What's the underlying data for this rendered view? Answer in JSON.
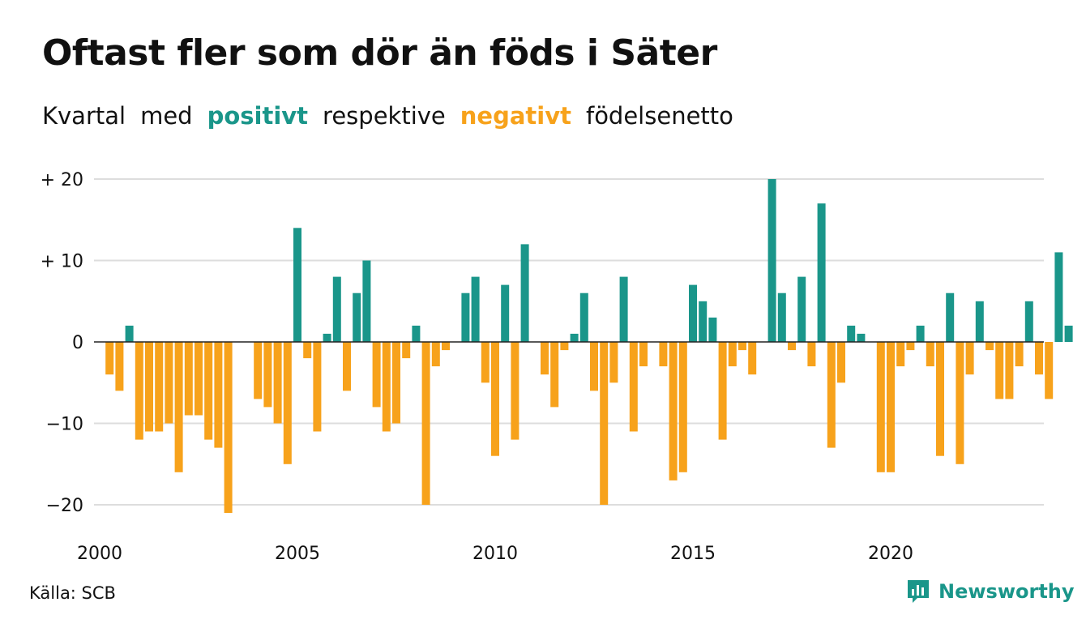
{
  "title": "Oftast fler som dör än föds i Säter",
  "subtitle": {
    "w1": "Kvartal",
    "w2": "med",
    "positive": "positivt",
    "w3": "respektive",
    "negative": "negativt",
    "w4": "födelsenetto"
  },
  "source": "Källa: SCB",
  "brand": "Newsworthy",
  "colors": {
    "positive": "#1a968a",
    "negative": "#f7a21b",
    "text": "#111111",
    "grid": "#dddddd",
    "axis": "#222222"
  },
  "chart_data": {
    "type": "bar",
    "frequency": "quarterly",
    "start_year": 2000,
    "ylim": [
      -22,
      21
    ],
    "yticks": [
      20,
      10,
      0,
      -10,
      -20
    ],
    "ytick_labels": [
      "+ 20",
      "+ 10",
      "0",
      "−10",
      "−20"
    ],
    "xtick_labels": [
      "2000",
      "2005",
      "2010",
      "2015",
      "2020"
    ],
    "grid": true,
    "legend": "none",
    "categories": [
      "2000-Q1",
      "2000-Q2",
      "2000-Q3",
      "2000-Q4",
      "2001-Q1",
      "2001-Q2",
      "2001-Q3",
      "2001-Q4",
      "2002-Q1",
      "2002-Q2",
      "2002-Q3",
      "2002-Q4",
      "2003-Q1",
      "2003-Q2",
      "2003-Q3",
      "2003-Q4",
      "2004-Q1",
      "2004-Q2",
      "2004-Q3",
      "2004-Q4",
      "2005-Q1",
      "2005-Q2",
      "2005-Q3",
      "2005-Q4",
      "2006-Q1",
      "2006-Q2",
      "2006-Q3",
      "2006-Q4",
      "2007-Q1",
      "2007-Q2",
      "2007-Q3",
      "2007-Q4",
      "2008-Q1",
      "2008-Q2",
      "2008-Q3",
      "2008-Q4",
      "2009-Q1",
      "2009-Q2",
      "2009-Q3",
      "2009-Q4",
      "2010-Q1",
      "2010-Q2",
      "2010-Q3",
      "2010-Q4",
      "2011-Q1",
      "2011-Q2",
      "2011-Q3",
      "2011-Q4",
      "2012-Q1",
      "2012-Q2",
      "2012-Q3",
      "2012-Q4",
      "2013-Q1",
      "2013-Q2",
      "2013-Q3",
      "2013-Q4",
      "2014-Q1",
      "2014-Q2",
      "2014-Q3",
      "2014-Q4",
      "2015-Q1",
      "2015-Q2",
      "2015-Q3",
      "2015-Q4",
      "2016-Q1",
      "2016-Q2",
      "2016-Q3",
      "2016-Q4",
      "2017-Q1",
      "2017-Q2",
      "2017-Q3",
      "2017-Q4",
      "2018-Q1",
      "2018-Q2",
      "2018-Q3",
      "2018-Q4",
      "2019-Q1",
      "2019-Q2",
      "2019-Q3",
      "2019-Q4",
      "2020-Q1",
      "2020-Q2",
      "2020-Q3",
      "2020-Q4",
      "2021-Q1",
      "2021-Q2",
      "2021-Q3",
      "2021-Q4",
      "2022-Q1",
      "2022-Q2",
      "2022-Q3",
      "2022-Q4",
      "2023-Q1",
      "2023-Q2",
      "2023-Q3",
      "2023-Q4",
      "2024-Q1",
      "2024-Q2",
      "2024-Q3",
      "2024-Q4"
    ],
    "values": [
      0,
      -4,
      -6,
      2,
      -12,
      -11,
      -11,
      -10,
      -16,
      -9,
      -9,
      -12,
      -13,
      -21,
      0,
      0,
      -7,
      -8,
      -10,
      -15,
      14,
      -2,
      -11,
      1,
      8,
      -6,
      6,
      10,
      -8,
      -11,
      -10,
      -2,
      2,
      -20,
      -3,
      -1,
      0,
      6,
      8,
      -5,
      -14,
      7,
      -12,
      12,
      0,
      -4,
      -8,
      -1,
      1,
      6,
      -6,
      -20,
      -5,
      8,
      -11,
      -3,
      0,
      -3,
      -17,
      -16,
      7,
      5,
      3,
      -12,
      -3,
      -1,
      -4,
      0,
      20,
      6,
      -1,
      8,
      -3,
      17,
      -13,
      -5,
      2,
      1,
      0,
      -16,
      -16,
      -3,
      -1,
      2,
      -3,
      -14,
      6,
      -15,
      -4,
      5,
      -1,
      -7,
      -7,
      -3,
      5,
      -4,
      -7,
      11,
      2,
      0
    ]
  }
}
